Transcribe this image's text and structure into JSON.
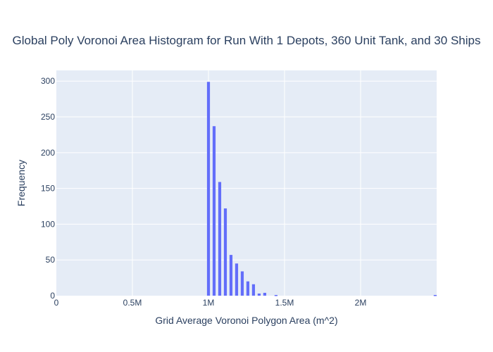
{
  "chart_data": {
    "type": "bar",
    "title": "Global Poly Voronoi Area Histogram for Run With 1 Depots, 360 Unit Tank, and 30 Ships",
    "xlabel": "Grid Average Voronoi Polygon Area (m^2)",
    "ylabel": "Frequency",
    "xlim": [
      0,
      2500000
    ],
    "ylim": [
      0,
      315
    ],
    "x_ticks": [
      {
        "value": 0,
        "label": "0"
      },
      {
        "value": 500000,
        "label": "0.5M"
      },
      {
        "value": 1000000,
        "label": "1M"
      },
      {
        "value": 1500000,
        "label": "1.5M"
      },
      {
        "value": 2000000,
        "label": "2M"
      }
    ],
    "y_ticks": [
      {
        "value": 0,
        "label": "0"
      },
      {
        "value": 50,
        "label": "50"
      },
      {
        "value": 100,
        "label": "100"
      },
      {
        "value": 150,
        "label": "150"
      },
      {
        "value": 200,
        "label": "200"
      },
      {
        "value": 250,
        "label": "250"
      },
      {
        "value": 300,
        "label": "300"
      }
    ],
    "bar_color": "#636efa",
    "grid": true,
    "bins": [
      {
        "x": 1000000,
        "count": 299
      },
      {
        "x": 1037000,
        "count": 237
      },
      {
        "x": 1074000,
        "count": 159
      },
      {
        "x": 1111000,
        "count": 122
      },
      {
        "x": 1148000,
        "count": 57
      },
      {
        "x": 1185000,
        "count": 45
      },
      {
        "x": 1222000,
        "count": 34
      },
      {
        "x": 1259000,
        "count": 20
      },
      {
        "x": 1296000,
        "count": 16
      },
      {
        "x": 1333000,
        "count": 3
      },
      {
        "x": 1370000,
        "count": 4
      },
      {
        "x": 1407000,
        "count": 0
      },
      {
        "x": 1444000,
        "count": 1
      },
      {
        "x": 2500000,
        "count": 1
      }
    ]
  }
}
